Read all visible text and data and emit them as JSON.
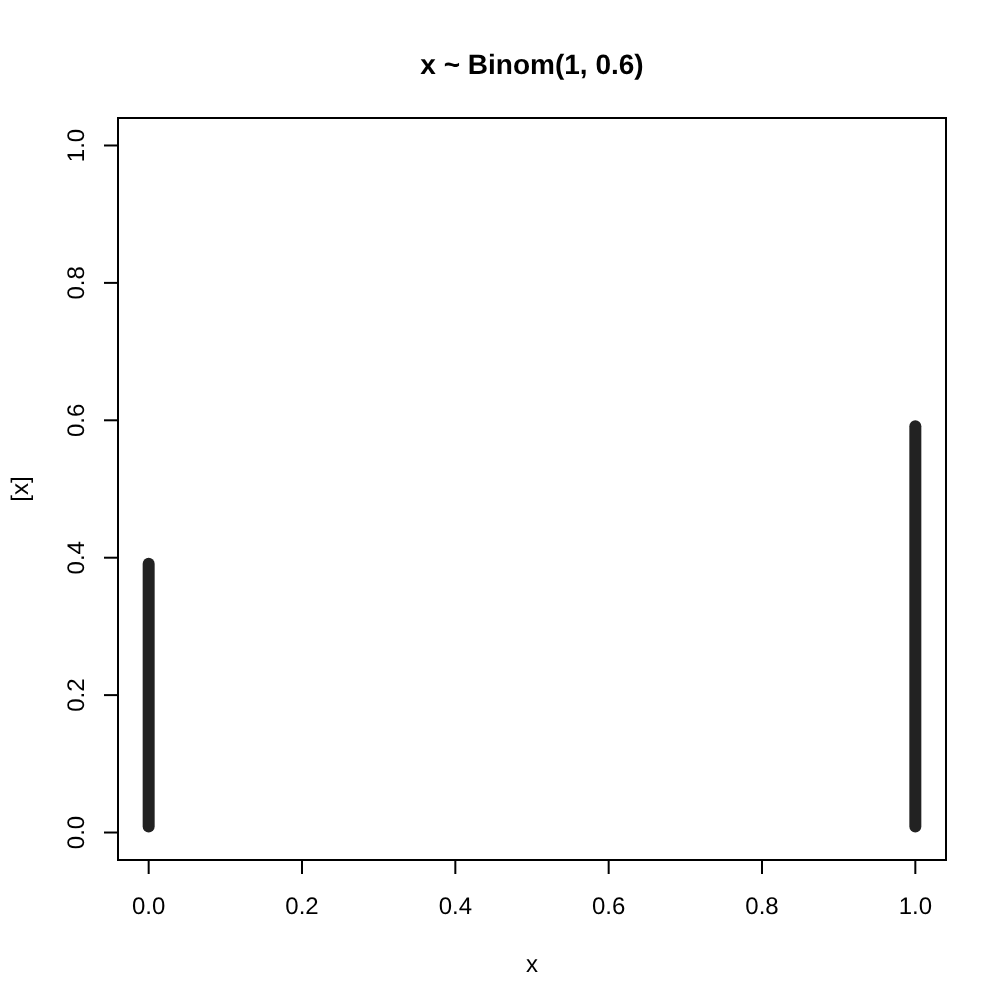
{
  "chart_data": {
    "type": "bar",
    "title": "x ~ Binom(1, 0.6)",
    "xlabel": "x",
    "ylabel": "[x]",
    "x": [
      0,
      1
    ],
    "series": [
      {
        "color": "#222222",
        "values": [
          0.4,
          0.6
        ]
      }
    ],
    "xlim": [
      -0.04,
      1.04
    ],
    "ylim": [
      -0.04,
      1.04
    ],
    "xticks": [
      {
        "value": 0,
        "label": "0.0"
      },
      0.2,
      0.4,
      0.6,
      0.8,
      {
        "value": 1,
        "label": "1.0"
      }
    ],
    "yticks": [
      {
        "value": 0,
        "label": "0.0"
      },
      0.2,
      0.4,
      0.6,
      0.8,
      {
        "value": 1,
        "label": "1.0"
      }
    ]
  }
}
